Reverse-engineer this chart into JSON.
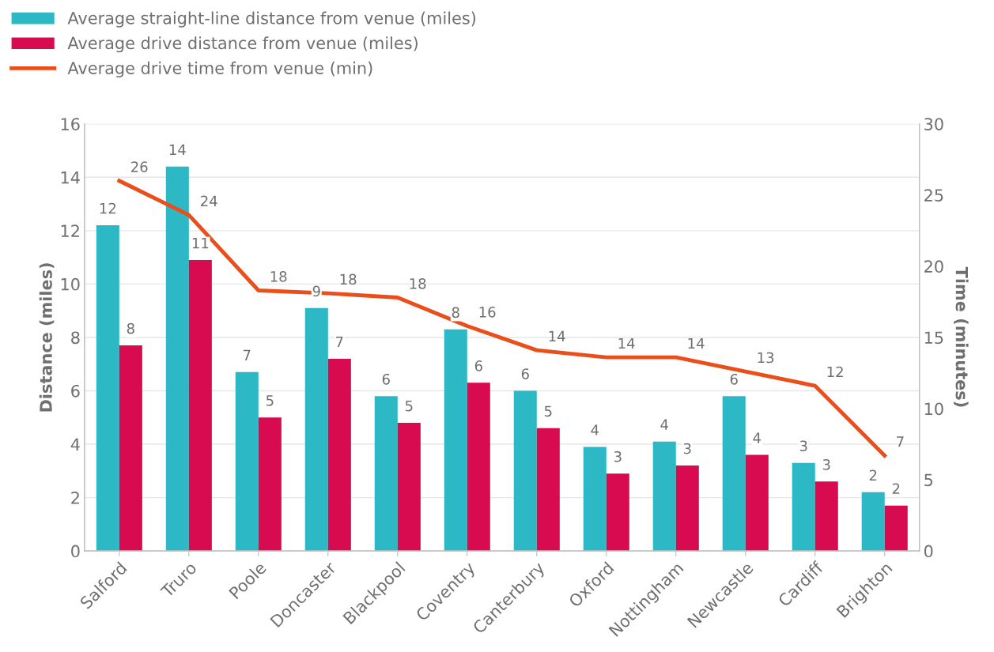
{
  "chart_data": {
    "type": "bar",
    "ylabel": "Distance (miles)",
    "y2label": "Time (minutes)",
    "categories": [
      "Salford",
      "Truro",
      "Poole",
      "Doncaster",
      "Blackpool",
      "Coventry",
      "Canterbury",
      "Oxford",
      "Nottingham",
      "Newcastle",
      "Cardiff",
      "Brighton"
    ],
    "series": [
      {
        "name": "Average straight-line distance from venue (miles)",
        "color": "#2cb8c4",
        "values": [
          12.2,
          14.4,
          6.7,
          9.1,
          5.8,
          8.3,
          6.0,
          3.9,
          4.1,
          5.8,
          3.3,
          2.2
        ],
        "value_labels": [
          "12",
          "14",
          "7",
          "9",
          "6",
          "8",
          "6",
          "4",
          "4",
          "6",
          "3",
          "2"
        ]
      },
      {
        "name": "Average drive distance from venue (miles)",
        "color": "#d80b50",
        "values": [
          7.7,
          10.9,
          5.0,
          7.2,
          4.8,
          6.3,
          4.6,
          2.9,
          3.2,
          3.6,
          2.6,
          1.7
        ],
        "value_labels": [
          "8",
          "11",
          "5",
          "7",
          "5",
          "6",
          "5",
          "3",
          "3",
          "4",
          "3",
          "2"
        ]
      },
      {
        "name": "Average drive time from venue (min)",
        "type": "line",
        "axis": "y2",
        "color": "#e94e1b",
        "values": [
          26.0,
          23.6,
          18.3,
          18.1,
          17.8,
          15.8,
          14.1,
          13.6,
          13.6,
          12.6,
          11.6,
          6.7
        ],
        "value_labels": [
          "26",
          "24",
          "18",
          "18",
          "18",
          "16",
          "14",
          "14",
          "14",
          "13",
          "12",
          "7"
        ]
      }
    ],
    "ylim": [
      0,
      16
    ],
    "yticks": [
      0,
      2,
      4,
      6,
      8,
      10,
      12,
      14,
      16
    ],
    "y2lim": [
      0,
      30
    ],
    "y2ticks": [
      0,
      5,
      10,
      15,
      20,
      25,
      30
    ],
    "grid": "y",
    "legend": "top left",
    "marker": "none",
    "line_style": "solid"
  }
}
